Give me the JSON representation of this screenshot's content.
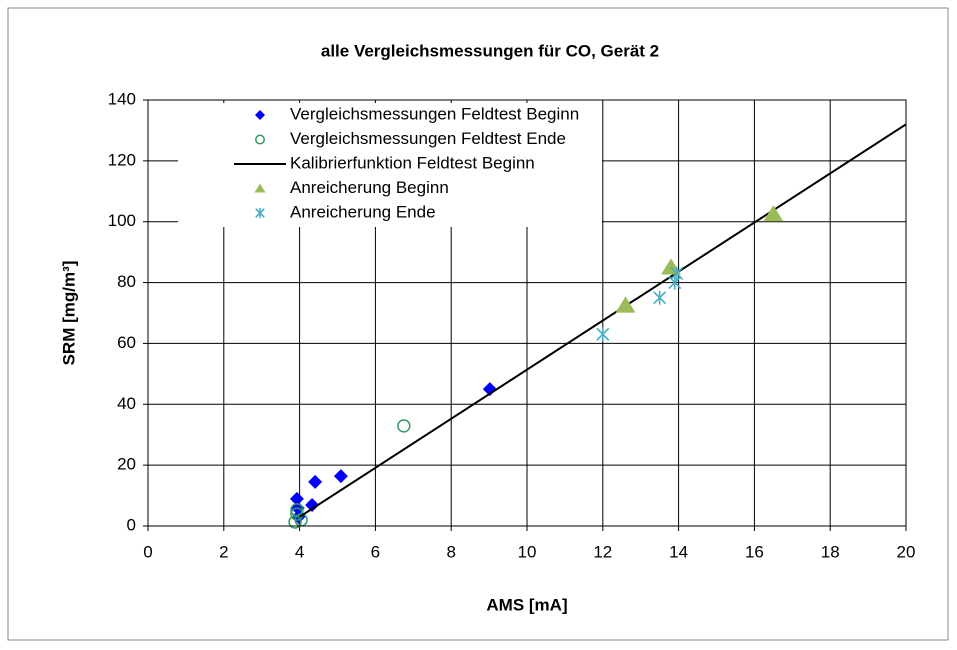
{
  "chart_data": {
    "type": "scatter",
    "title": "alle Vergleichsmessungen für CO, Gerät 2",
    "xlabel": "AMS [mA]",
    "ylabel": "SRM [mg/m³]",
    "xlim": [
      0,
      20
    ],
    "xticks": [
      0,
      2,
      4,
      6,
      8,
      10,
      12,
      14,
      16,
      18,
      20
    ],
    "ylim": [
      0,
      140
    ],
    "yticks": [
      0,
      20,
      40,
      60,
      80,
      100,
      120,
      140
    ],
    "grid": true,
    "legend": "upper left",
    "series": [
      {
        "name": "Vergleichsmessungen Feldtest Beginn",
        "marker": "diamond",
        "color": "#0000ff",
        "x": [
          3.93,
          3.95,
          3.97,
          4.41,
          4.33,
          5.09,
          9.02
        ],
        "values": [
          8.9,
          5.9,
          3.0,
          14.5,
          6.9,
          16.4,
          45.0
        ]
      },
      {
        "name": "Vergleichsmessungen Feldtest Ende",
        "marker": "circle",
        "color": "#339966",
        "x": [
          6.75,
          3.93,
          4.04,
          3.88,
          3.93
        ],
        "values": [
          32.9,
          3.9,
          2.0,
          1.3,
          5.3
        ]
      },
      {
        "name": "Kalibrierfunktion Feldtest Beginn",
        "marker": "line",
        "color": "#000000",
        "x": [
          4,
          20
        ],
        "values": [
          3,
          132
        ]
      },
      {
        "name": "Anreicherung Beginn",
        "marker": "triangle",
        "color": "#9bbb59",
        "x": [
          12.6,
          13.8,
          16.5
        ],
        "values": [
          72.5,
          85,
          102.5
        ]
      },
      {
        "name": "Anreicherung Ende",
        "marker": "asterisk",
        "color": "#4bacc6",
        "x": [
          12.0,
          13.5,
          13.9,
          13.95
        ],
        "values": [
          63,
          75,
          80,
          83
        ]
      }
    ]
  }
}
